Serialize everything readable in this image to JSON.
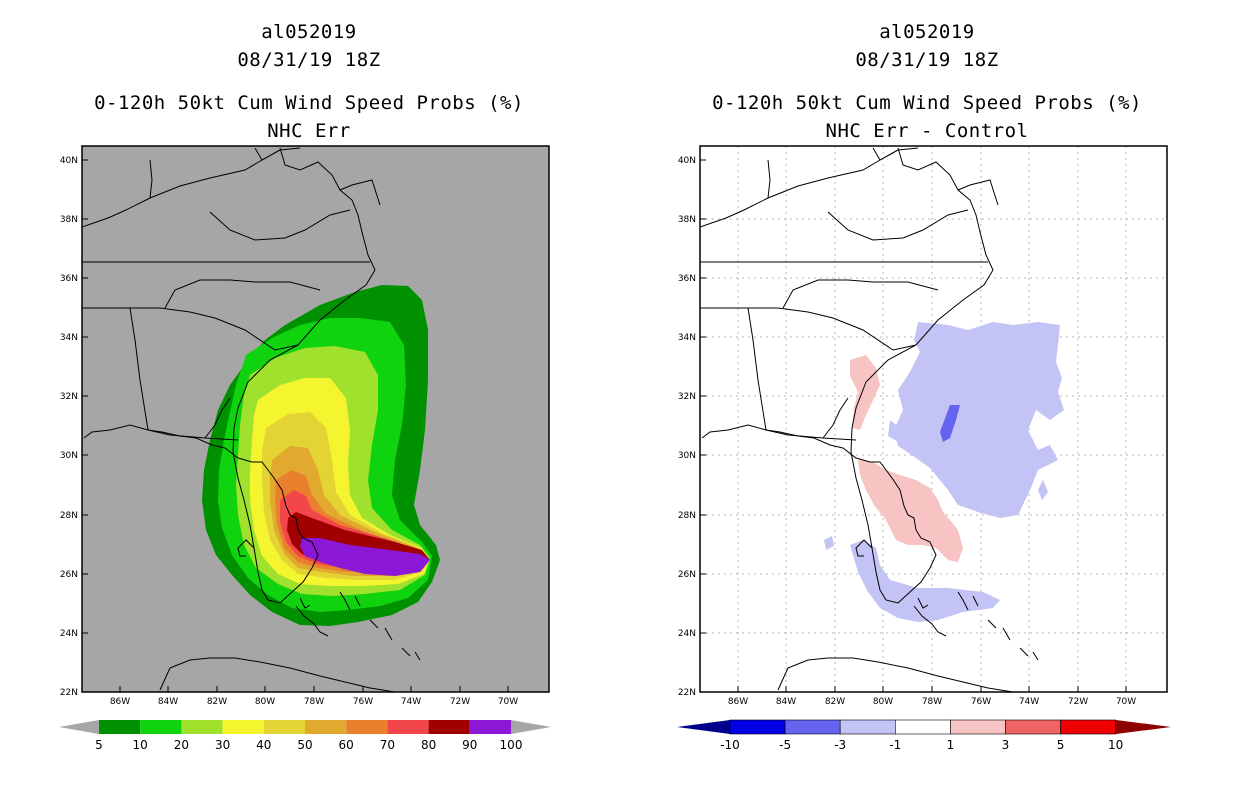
{
  "panels": [
    {
      "storm_id": "al052019",
      "datetime": "08/31/19 18Z",
      "product": "0-120h 50kt Cum Wind Speed Probs (%)",
      "subtitle": "NHC Err",
      "colorbar_labels": [
        "5",
        "10",
        "20",
        "30",
        "40",
        "50",
        "60",
        "70",
        "80",
        "90",
        "100"
      ],
      "colorbar_colors": [
        "#009100",
        "#10d310",
        "#9fe12d",
        "#f4f42f",
        "#e3d434",
        "#e2a92f",
        "#e9802d",
        "#f2464b",
        "#a10000",
        "#8a18d6"
      ]
    },
    {
      "storm_id": "al052019",
      "datetime": "08/31/19 18Z",
      "product": "0-120h 50kt Cum Wind Speed Probs (%)",
      "subtitle": "NHC Err - Control",
      "colorbar_labels": [
        "-10",
        "-5",
        "-3",
        "-1",
        "1",
        "3",
        "5",
        "10"
      ],
      "colorbar_colors": [
        "#0000e6",
        "#6464f0",
        "#c3c3f5",
        "#ffffff",
        "#f8c3c3",
        "#f06464",
        "#f00000"
      ],
      "colorbar_end_colors": [
        "#00008c",
        "#8c0000"
      ]
    }
  ],
  "axes": {
    "lat_labels": [
      "40N",
      "38N",
      "36N",
      "34N",
      "32N",
      "30N",
      "28N",
      "26N",
      "24N",
      "22N"
    ],
    "lon_labels": [
      "86W",
      "84W",
      "82W",
      "80W",
      "78W",
      "76W",
      "74W",
      "72W",
      "70W"
    ]
  },
  "colors": {
    "land_background_left": "#a6a6a6",
    "grid_dots": "#b4b4b4"
  }
}
